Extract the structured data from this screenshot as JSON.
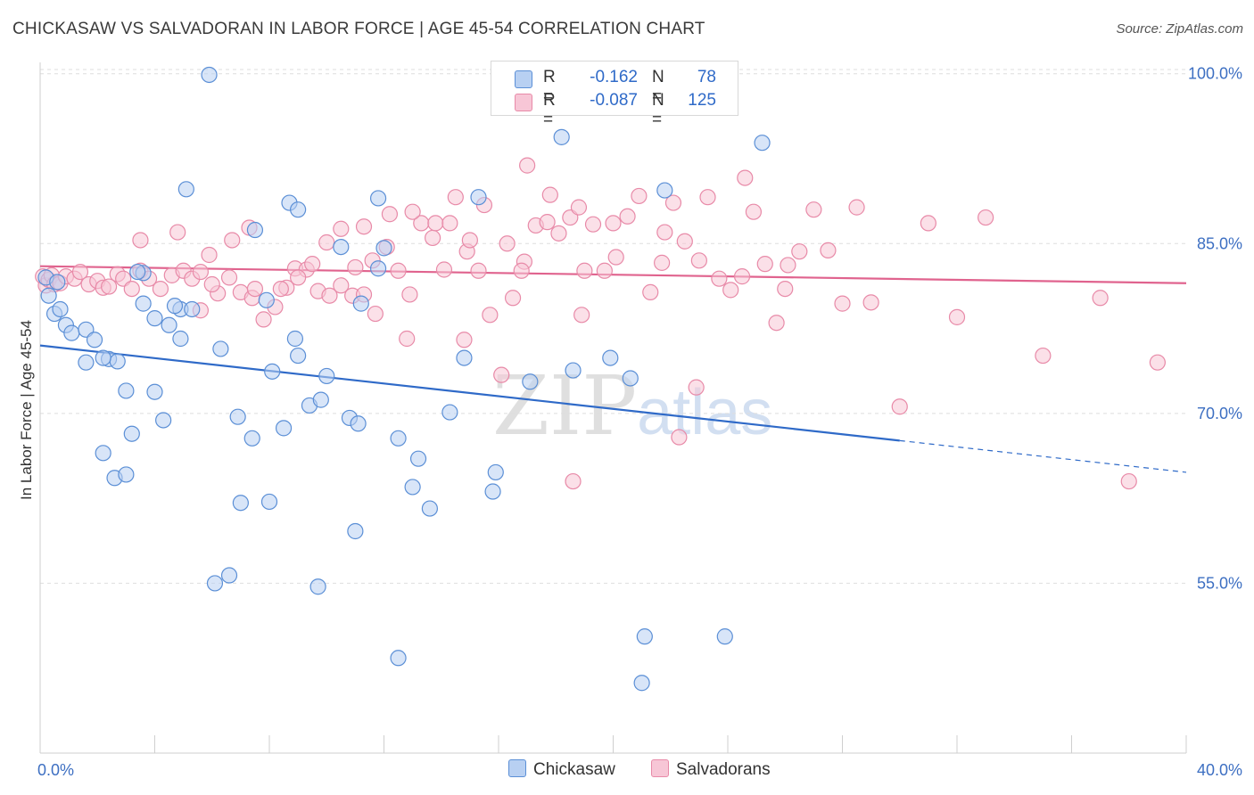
{
  "header": {
    "title": "CHICKASAW VS SALVADORAN IN LABOR FORCE | AGE 45-54 CORRELATION CHART",
    "source": "Source: ZipAtlas.com"
  },
  "legend": {
    "rows": [
      {
        "r_label": "R =",
        "r_value": "-0.162",
        "n_label": "N =",
        "n_value": "78"
      },
      {
        "r_label": "R =",
        "r_value": "-0.087",
        "n_label": "N =",
        "n_value": "125"
      }
    ]
  },
  "bottom_legend": {
    "chickasaw": "Chickasaw",
    "salvadorans": "Salvadorans"
  },
  "watermark": {
    "zip": "ZIP",
    "atlas": "atlas"
  },
  "colors": {
    "chickasaw_fill": "#b8d0f2",
    "chickasaw_stroke": "#5b8fd6",
    "chickasaw_line": "#2f6ac8",
    "salvadoran_fill": "#f7c6d6",
    "salvadoran_stroke": "#e88aa8",
    "salvadoran_line": "#e0638e"
  },
  "chart_data": {
    "type": "scatter",
    "xlabel": "",
    "ylabel": "In Labor Force | Age 45-54",
    "xlim": [
      0,
      40
    ],
    "ylim": [
      40,
      101
    ],
    "y_ticks": [
      {
        "value": 55,
        "label": "55.0%"
      },
      {
        "value": 70,
        "label": "70.0%"
      },
      {
        "value": 85,
        "label": "85.0%"
      },
      {
        "value": 100,
        "label": "100.0%"
      }
    ],
    "x_tick_labels": [
      {
        "value": 0,
        "label": "0.0%"
      },
      {
        "value": 40,
        "label": "40.0%"
      }
    ],
    "grid": true,
    "series": [
      {
        "name": "Chickasaw",
        "trend": {
          "x0": 0,
          "y0": 76.0,
          "x1": 30,
          "y1": 67.6,
          "dash_to_x": 40,
          "dash_to_y": 64.8
        },
        "points": [
          [
            0.2,
            82.0
          ],
          [
            0.3,
            80.4
          ],
          [
            0.5,
            78.8
          ],
          [
            0.7,
            79.2
          ],
          [
            0.9,
            77.8
          ],
          [
            1.1,
            77.1
          ],
          [
            1.6,
            77.4
          ],
          [
            1.9,
            76.5
          ],
          [
            1.6,
            74.5
          ],
          [
            2.4,
            74.8
          ],
          [
            2.7,
            74.6
          ],
          [
            3.0,
            72.0
          ],
          [
            4.0,
            71.9
          ],
          [
            4.3,
            69.4
          ],
          [
            3.2,
            68.2
          ],
          [
            2.2,
            66.5
          ],
          [
            2.6,
            64.3
          ],
          [
            3.0,
            64.6
          ],
          [
            3.6,
            82.4
          ],
          [
            3.6,
            79.7
          ],
          [
            4.0,
            78.4
          ],
          [
            4.9,
            79.2
          ],
          [
            5.3,
            79.2
          ],
          [
            4.5,
            77.8
          ],
          [
            4.9,
            76.6
          ],
          [
            5.1,
            89.8
          ],
          [
            5.9,
            99.9
          ],
          [
            6.3,
            75.7
          ],
          [
            7.5,
            86.2
          ],
          [
            8.1,
            73.7
          ],
          [
            7.9,
            80.0
          ],
          [
            8.7,
            88.6
          ],
          [
            8.9,
            76.6
          ],
          [
            9.0,
            75.1
          ],
          [
            9.0,
            88.0
          ],
          [
            9.4,
            70.7
          ],
          [
            9.8,
            71.2
          ],
          [
            10.0,
            73.3
          ],
          [
            10.5,
            84.7
          ],
          [
            10.8,
            69.6
          ],
          [
            11.1,
            69.1
          ],
          [
            11.2,
            79.7
          ],
          [
            11.8,
            89.0
          ],
          [
            11.8,
            82.8
          ],
          [
            12.0,
            84.6
          ],
          [
            12.5,
            67.8
          ],
          [
            13.0,
            63.5
          ],
          [
            13.6,
            61.6
          ],
          [
            13.2,
            66.0
          ],
          [
            14.3,
            70.1
          ],
          [
            14.8,
            74.9
          ],
          [
            15.3,
            89.1
          ],
          [
            15.8,
            63.1
          ],
          [
            15.9,
            64.8
          ],
          [
            17.1,
            72.8
          ],
          [
            18.2,
            94.4
          ],
          [
            18.6,
            73.8
          ],
          [
            19.9,
            74.9
          ],
          [
            20.6,
            73.1
          ],
          [
            21.8,
            89.7
          ],
          [
            25.2,
            93.9
          ],
          [
            6.9,
            69.7
          ],
          [
            7.4,
            67.8
          ],
          [
            7.0,
            62.1
          ],
          [
            8.0,
            62.2
          ],
          [
            8.5,
            68.7
          ],
          [
            11.0,
            59.6
          ],
          [
            6.6,
            55.7
          ],
          [
            6.1,
            55.0
          ],
          [
            9.7,
            54.7
          ],
          [
            21.1,
            50.3
          ],
          [
            23.9,
            50.3
          ],
          [
            12.5,
            48.4
          ],
          [
            21.0,
            46.2
          ],
          [
            3.4,
            82.5
          ],
          [
            0.6,
            81.6
          ],
          [
            2.2,
            74.9
          ],
          [
            4.7,
            79.5
          ]
        ]
      },
      {
        "name": "Salvadorans",
        "trend": {
          "x0": 0,
          "y0": 83.0,
          "x1": 40,
          "y1": 81.5
        },
        "points": [
          [
            0.1,
            82.1
          ],
          [
            0.2,
            81.3
          ],
          [
            0.3,
            81.8
          ],
          [
            0.4,
            82.2
          ],
          [
            0.5,
            81.4
          ],
          [
            0.7,
            81.5
          ],
          [
            0.9,
            82.1
          ],
          [
            1.2,
            81.9
          ],
          [
            1.4,
            82.5
          ],
          [
            1.7,
            81.4
          ],
          [
            2.0,
            81.7
          ],
          [
            2.2,
            81.1
          ],
          [
            2.4,
            81.2
          ],
          [
            2.7,
            82.3
          ],
          [
            2.9,
            81.9
          ],
          [
            3.2,
            81.0
          ],
          [
            3.5,
            82.6
          ],
          [
            3.8,
            81.9
          ],
          [
            4.2,
            81.0
          ],
          [
            4.6,
            82.2
          ],
          [
            5.0,
            82.6
          ],
          [
            5.3,
            81.9
          ],
          [
            5.6,
            82.5
          ],
          [
            5.9,
            84.0
          ],
          [
            6.2,
            80.6
          ],
          [
            6.6,
            82.0
          ],
          [
            7.0,
            80.7
          ],
          [
            7.4,
            80.2
          ],
          [
            7.8,
            78.3
          ],
          [
            8.2,
            79.4
          ],
          [
            8.6,
            81.1
          ],
          [
            8.9,
            82.8
          ],
          [
            9.3,
            82.7
          ],
          [
            9.7,
            80.8
          ],
          [
            10.1,
            80.4
          ],
          [
            10.5,
            81.3
          ],
          [
            10.9,
            80.4
          ],
          [
            11.3,
            80.5
          ],
          [
            11.7,
            78.8
          ],
          [
            12.1,
            84.7
          ],
          [
            12.5,
            82.6
          ],
          [
            12.9,
            80.5
          ],
          [
            13.3,
            86.8
          ],
          [
            13.7,
            85.5
          ],
          [
            14.1,
            82.7
          ],
          [
            14.5,
            89.1
          ],
          [
            14.9,
            84.3
          ],
          [
            15.3,
            82.6
          ],
          [
            15.7,
            78.7
          ],
          [
            16.1,
            73.4
          ],
          [
            16.5,
            80.2
          ],
          [
            16.9,
            83.4
          ],
          [
            17.3,
            86.6
          ],
          [
            17.7,
            86.9
          ],
          [
            18.1,
            85.9
          ],
          [
            18.5,
            87.3
          ],
          [
            18.9,
            78.7
          ],
          [
            19.3,
            86.7
          ],
          [
            19.7,
            82.6
          ],
          [
            20.1,
            83.8
          ],
          [
            20.5,
            87.4
          ],
          [
            20.9,
            89.2
          ],
          [
            21.3,
            80.7
          ],
          [
            21.7,
            83.3
          ],
          [
            22.1,
            88.6
          ],
          [
            22.5,
            85.2
          ],
          [
            22.9,
            72.3
          ],
          [
            23.3,
            89.1
          ],
          [
            23.7,
            81.9
          ],
          [
            24.1,
            80.9
          ],
          [
            24.5,
            82.1
          ],
          [
            24.9,
            87.8
          ],
          [
            25.3,
            83.2
          ],
          [
            25.7,
            78.0
          ],
          [
            26.1,
            83.1
          ],
          [
            26.5,
            84.3
          ],
          [
            27.0,
            88.0
          ],
          [
            28.0,
            79.7
          ],
          [
            29.0,
            79.8
          ],
          [
            30.0,
            70.6
          ],
          [
            31.0,
            86.8
          ],
          [
            32.0,
            78.5
          ],
          [
            33.0,
            87.3
          ],
          [
            35.0,
            75.1
          ],
          [
            37.0,
            80.2
          ],
          [
            38.0,
            64.0
          ],
          [
            39.0,
            74.5
          ],
          [
            3.5,
            85.3
          ],
          [
            6.7,
            85.3
          ],
          [
            7.5,
            81.0
          ],
          [
            9.0,
            82.0
          ],
          [
            10.5,
            86.3
          ],
          [
            11.3,
            86.5
          ],
          [
            12.2,
            87.6
          ],
          [
            12.8,
            76.6
          ],
          [
            13.8,
            86.8
          ],
          [
            14.3,
            86.8
          ],
          [
            14.8,
            76.5
          ],
          [
            15.5,
            88.4
          ],
          [
            16.3,
            85.0
          ],
          [
            17.0,
            91.9
          ],
          [
            17.8,
            89.3
          ],
          [
            18.8,
            88.2
          ],
          [
            20.0,
            86.8
          ],
          [
            21.8,
            86.0
          ],
          [
            24.6,
            90.8
          ],
          [
            18.6,
            64.0
          ],
          [
            22.3,
            67.9
          ],
          [
            11.0,
            82.9
          ],
          [
            9.5,
            83.2
          ],
          [
            4.8,
            86.0
          ],
          [
            5.6,
            79.1
          ],
          [
            6.0,
            81.4
          ],
          [
            7.3,
            86.4
          ],
          [
            8.4,
            81.0
          ],
          [
            10.0,
            85.1
          ],
          [
            11.6,
            83.5
          ],
          [
            13.0,
            87.8
          ],
          [
            15.0,
            85.3
          ],
          [
            16.8,
            82.6
          ],
          [
            19.0,
            82.6
          ],
          [
            23.0,
            83.5
          ],
          [
            26.0,
            81.0
          ],
          [
            27.5,
            84.4
          ],
          [
            28.5,
            88.2
          ]
        ]
      }
    ]
  }
}
